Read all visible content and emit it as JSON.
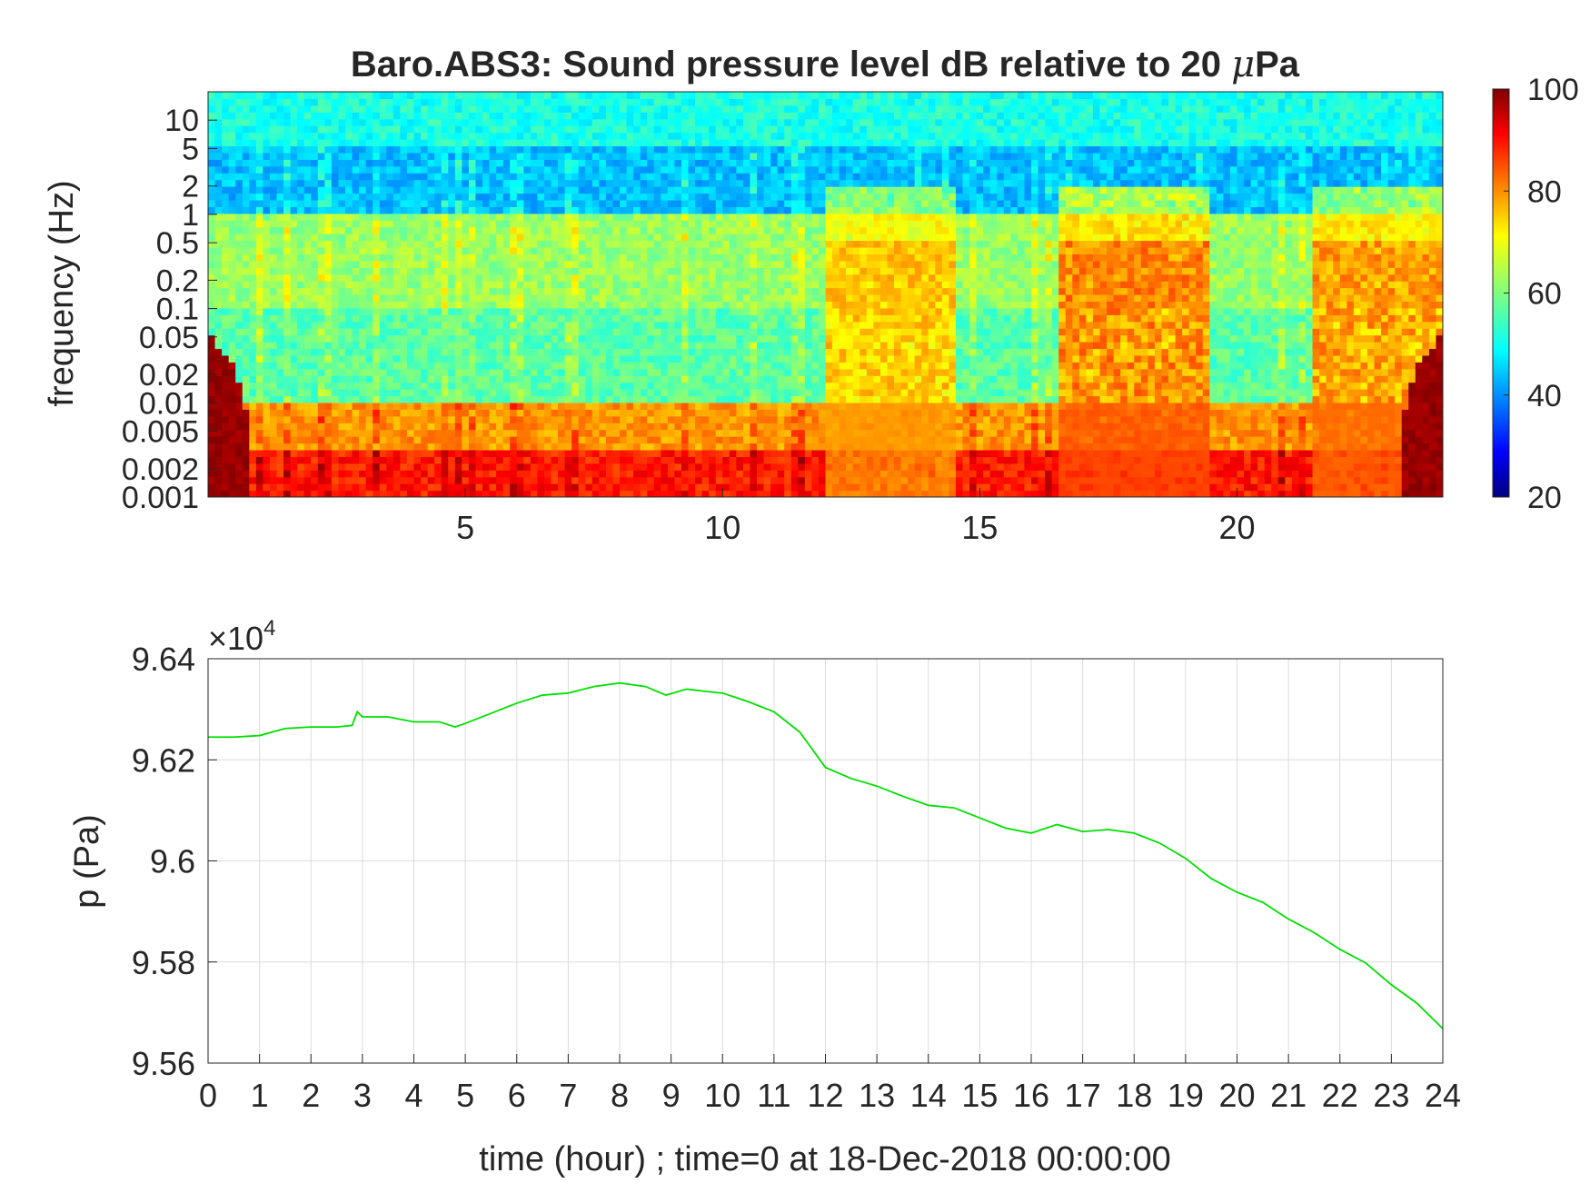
{
  "figure": {
    "title_prefix": "Baro.ABS3: Sound pressure level dB relative to 20 ",
    "title_mu": "μ",
    "title_suffix": "Pa"
  },
  "chart_data": [
    {
      "type": "heatmap",
      "title": "Baro.ABS3: Sound pressure level dB relative to 20 μPa",
      "ylabel": "frequency (Hz)",
      "xlabel": "",
      "y_scale": "log",
      "xlim": [
        0,
        24
      ],
      "ylim": [
        0.001,
        20
      ],
      "x_ticks": [
        5,
        10,
        15,
        20
      ],
      "y_ticks": [
        0.001,
        0.002,
        0.005,
        0.01,
        0.02,
        0.05,
        0.1,
        0.2,
        0.5,
        1,
        2,
        5,
        10
      ],
      "y_tick_labels": [
        "0.001",
        "0.002",
        "0.005",
        "0.01",
        "0.02",
        "0.05",
        "0.1",
        "0.2",
        "0.5",
        "1",
        "2",
        "5",
        "10"
      ],
      "colorbar": {
        "label": "",
        "range": [
          20,
          100
        ],
        "ticks": [
          20,
          40,
          60,
          80,
          100
        ],
        "colormap": "jet"
      },
      "description_values": {
        "hours": [
          0,
          2,
          4,
          6,
          8,
          10,
          12,
          14,
          16,
          18,
          20,
          22,
          24
        ],
        "band_levels_db": {
          "above_5Hz": 52,
          "1_to_5Hz": 45,
          "0.1_to_1Hz": 62,
          "0.01_to_0.1Hz": 57,
          "0.003_to_0.01Hz": 78,
          "below_0.003Hz": 88
        },
        "elevated_windows": [
          {
            "start_hour": 12,
            "end_hour": 14.5,
            "peak_db": 78
          },
          {
            "start_hour": 16.5,
            "end_hour": 19.5,
            "peak_db": 84
          },
          {
            "start_hour": 21.5,
            "end_hour": 24,
            "peak_db": 82
          }
        ]
      }
    },
    {
      "type": "line",
      "title": "",
      "xlabel": "time (hour) ; time=0 at 18-Dec-2018 00:00:00",
      "ylabel": "p (Pa)",
      "y_multiplier_text": "×10",
      "y_multiplier_exp": "4",
      "xlim": [
        0,
        24
      ],
      "ylim": [
        9.56,
        9.64
      ],
      "x_ticks": [
        0,
        1,
        2,
        3,
        4,
        5,
        6,
        7,
        8,
        9,
        10,
        11,
        12,
        13,
        14,
        15,
        16,
        17,
        18,
        19,
        20,
        21,
        22,
        23,
        24
      ],
      "y_ticks": [
        9.56,
        9.58,
        9.6,
        9.62,
        9.64
      ],
      "y_tick_labels": [
        "9.56",
        "9.58",
        "9.6",
        "9.62",
        "9.64"
      ],
      "grid": true,
      "series": [
        {
          "color": "#00e000",
          "x": [
            0,
            0.5,
            1,
            1.5,
            2,
            2.5,
            2.8,
            2.9,
            3,
            3.5,
            4,
            4.5,
            4.8,
            5,
            5.5,
            6,
            6.5,
            7,
            7.5,
            8,
            8.5,
            8.9,
            9.3,
            9.7,
            10,
            10.5,
            11,
            11.5,
            12,
            12.5,
            13,
            13.5,
            14,
            14.5,
            15,
            15.5,
            16,
            16.5,
            17,
            17.5,
            18,
            18.5,
            19,
            19.5,
            20,
            20.5,
            21,
            21.5,
            22,
            22.5,
            23,
            23.5,
            24
          ],
          "y": [
            9.6245,
            9.6245,
            9.6248,
            9.6262,
            9.6265,
            9.6265,
            9.6268,
            9.6295,
            9.6285,
            9.6285,
            9.6275,
            9.6275,
            9.6265,
            9.6272,
            9.6292,
            9.6312,
            9.6328,
            9.6332,
            9.6345,
            9.6352,
            9.6345,
            9.6328,
            9.634,
            9.6335,
            9.6332,
            9.6315,
            9.6295,
            9.6255,
            9.6185,
            9.6163,
            9.6148,
            9.6128,
            9.611,
            9.6105,
            9.6085,
            9.6065,
            9.6055,
            9.6072,
            9.6058,
            9.6062,
            9.6055,
            9.6035,
            9.6005,
            9.5965,
            9.5938,
            9.5918,
            9.5885,
            9.5858,
            9.5825,
            9.5798,
            9.5755,
            9.5718,
            9.5668
          ]
        }
      ]
    }
  ]
}
